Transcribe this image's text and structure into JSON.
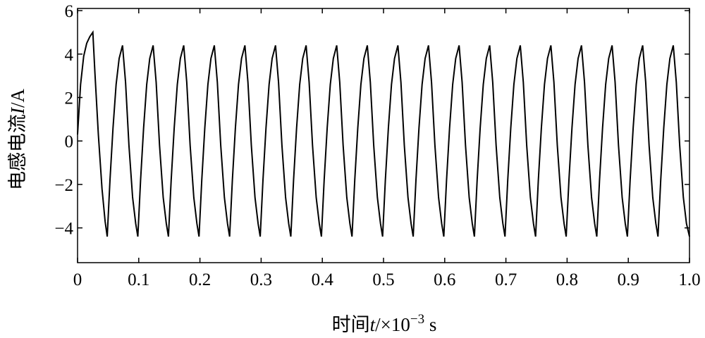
{
  "chart_data": {
    "type": "line",
    "xlabel": {
      "prefix": "时间",
      "var": "t",
      "sep": "/×10",
      "exp": "−3",
      "unit": " s"
    },
    "ylabel": {
      "prefix": "电感电流",
      "var": "I",
      "unit": "/A"
    },
    "xlim": [
      0,
      1.0
    ],
    "ylim": [
      -5.6,
      6.1
    ],
    "x_ticks": [
      0,
      0.1,
      0.2,
      0.3,
      0.4,
      0.5,
      0.6,
      0.7,
      0.8,
      0.9,
      1.0
    ],
    "x_tick_labels": [
      "0",
      "0.1",
      "0.2",
      "0.3",
      "0.4",
      "0.5",
      "0.6",
      "0.7",
      "0.8",
      "0.9",
      "1.0"
    ],
    "y_ticks": [
      -4,
      -2,
      0,
      2,
      4,
      6
    ],
    "y_tick_labels": [
      "−4",
      "−2",
      "0",
      "2",
      "4",
      "6"
    ],
    "grid": false,
    "line_color": "#000000",
    "series": [
      {
        "x": [
          0,
          0.005,
          0.01,
          0.015,
          0.02,
          0.025,
          0.0285,
          0.034,
          0.04,
          0.045,
          0.0485,
          0.053,
          0.058,
          0.063,
          0.068,
          0.0735,
          0.0785,
          0.084,
          0.09,
          0.095,
          0.0985,
          0.103,
          0.108,
          0.113,
          0.118,
          0.1235,
          0.1285,
          0.134,
          0.14,
          0.145,
          0.1485,
          0.153,
          0.158,
          0.163,
          0.168,
          0.1735,
          0.1785,
          0.184,
          0.19,
          0.195,
          0.1985,
          0.203,
          0.208,
          0.213,
          0.218,
          0.2235,
          0.2285,
          0.234,
          0.24,
          0.245,
          0.2485,
          0.253,
          0.258,
          0.263,
          0.268,
          0.2735,
          0.2785,
          0.284,
          0.29,
          0.295,
          0.2985,
          0.303,
          0.308,
          0.313,
          0.318,
          0.3235,
          0.3285,
          0.334,
          0.34,
          0.345,
          0.3485,
          0.353,
          0.358,
          0.363,
          0.368,
          0.3735,
          0.3785,
          0.384,
          0.39,
          0.395,
          0.3985,
          0.403,
          0.408,
          0.413,
          0.418,
          0.4235,
          0.4285,
          0.434,
          0.44,
          0.445,
          0.4485,
          0.453,
          0.458,
          0.463,
          0.468,
          0.4735,
          0.4785,
          0.484,
          0.49,
          0.495,
          0.4985,
          0.503,
          0.508,
          0.513,
          0.518,
          0.5235,
          0.5285,
          0.534,
          0.54,
          0.545,
          0.5485,
          0.553,
          0.558,
          0.563,
          0.568,
          0.5735,
          0.5785,
          0.584,
          0.59,
          0.595,
          0.5985,
          0.603,
          0.608,
          0.613,
          0.618,
          0.6235,
          0.6285,
          0.634,
          0.64,
          0.645,
          0.6485,
          0.653,
          0.658,
          0.663,
          0.668,
          0.6735,
          0.6785,
          0.684,
          0.69,
          0.695,
          0.6985,
          0.703,
          0.708,
          0.713,
          0.718,
          0.7235,
          0.7285,
          0.734,
          0.74,
          0.745,
          0.7485,
          0.753,
          0.758,
          0.763,
          0.768,
          0.7735,
          0.7785,
          0.784,
          0.79,
          0.795,
          0.7985,
          0.803,
          0.808,
          0.813,
          0.818,
          0.8235,
          0.8285,
          0.834,
          0.84,
          0.845,
          0.8485,
          0.853,
          0.858,
          0.863,
          0.868,
          0.8735,
          0.8785,
          0.884,
          0.89,
          0.895,
          0.8985,
          0.903,
          0.908,
          0.913,
          0.918,
          0.9235,
          0.9285,
          0.934,
          0.94,
          0.945,
          0.9485,
          0.953,
          0.958,
          0.963,
          0.968,
          0.9735,
          0.9785,
          0.984,
          0.99,
          0.995,
          1.0
        ],
        "y": [
          0.3,
          2.6,
          3.9,
          4.5,
          4.8,
          5.0,
          3.1,
          0.3,
          -2.2,
          -3.7,
          -4.4,
          -1.8,
          0.6,
          2.6,
          3.8,
          4.4,
          2.7,
          -0.2,
          -2.6,
          -3.8,
          -4.4,
          -1.8,
          0.6,
          2.6,
          3.8,
          4.4,
          2.7,
          -0.2,
          -2.6,
          -3.8,
          -4.4,
          -1.8,
          0.6,
          2.6,
          3.8,
          4.4,
          2.7,
          -0.2,
          -2.6,
          -3.8,
          -4.4,
          -1.8,
          0.6,
          2.6,
          3.8,
          4.4,
          2.7,
          -0.2,
          -2.6,
          -3.8,
          -4.4,
          -1.8,
          0.6,
          2.6,
          3.8,
          4.4,
          2.7,
          -0.2,
          -2.6,
          -3.8,
          -4.4,
          -1.8,
          0.6,
          2.6,
          3.8,
          4.4,
          2.7,
          -0.2,
          -2.6,
          -3.8,
          -4.4,
          -1.8,
          0.6,
          2.6,
          3.8,
          4.4,
          2.7,
          -0.2,
          -2.6,
          -3.8,
          -4.4,
          -1.8,
          0.6,
          2.6,
          3.8,
          4.4,
          2.7,
          -0.2,
          -2.6,
          -3.8,
          -4.4,
          -1.8,
          0.6,
          2.6,
          3.8,
          4.4,
          2.7,
          -0.2,
          -2.6,
          -3.8,
          -4.4,
          -1.8,
          0.6,
          2.6,
          3.8,
          4.4,
          2.7,
          -0.2,
          -2.6,
          -3.8,
          -4.4,
          -1.8,
          0.6,
          2.6,
          3.8,
          4.4,
          2.7,
          -0.2,
          -2.6,
          -3.8,
          -4.4,
          -1.8,
          0.6,
          2.6,
          3.8,
          4.4,
          2.7,
          -0.2,
          -2.6,
          -3.8,
          -4.4,
          -1.8,
          0.6,
          2.6,
          3.8,
          4.4,
          2.7,
          -0.2,
          -2.6,
          -3.8,
          -4.4,
          -1.8,
          0.6,
          2.6,
          3.8,
          4.4,
          2.7,
          -0.2,
          -2.6,
          -3.8,
          -4.4,
          -1.8,
          0.6,
          2.6,
          3.8,
          4.4,
          2.7,
          -0.2,
          -2.6,
          -3.8,
          -4.4,
          -1.8,
          0.6,
          2.6,
          3.8,
          4.4,
          2.7,
          -0.2,
          -2.6,
          -3.8,
          -4.4,
          -1.8,
          0.6,
          2.6,
          3.8,
          4.4,
          2.7,
          -0.2,
          -2.6,
          -3.8,
          -4.4,
          -1.8,
          0.6,
          2.6,
          3.8,
          4.4,
          2.7,
          -0.2,
          -2.6,
          -3.8,
          -4.4,
          -1.8,
          0.6,
          2.6,
          3.8,
          4.4,
          2.7,
          -0.2,
          -2.6,
          -3.8,
          -4.4
        ]
      }
    ]
  }
}
